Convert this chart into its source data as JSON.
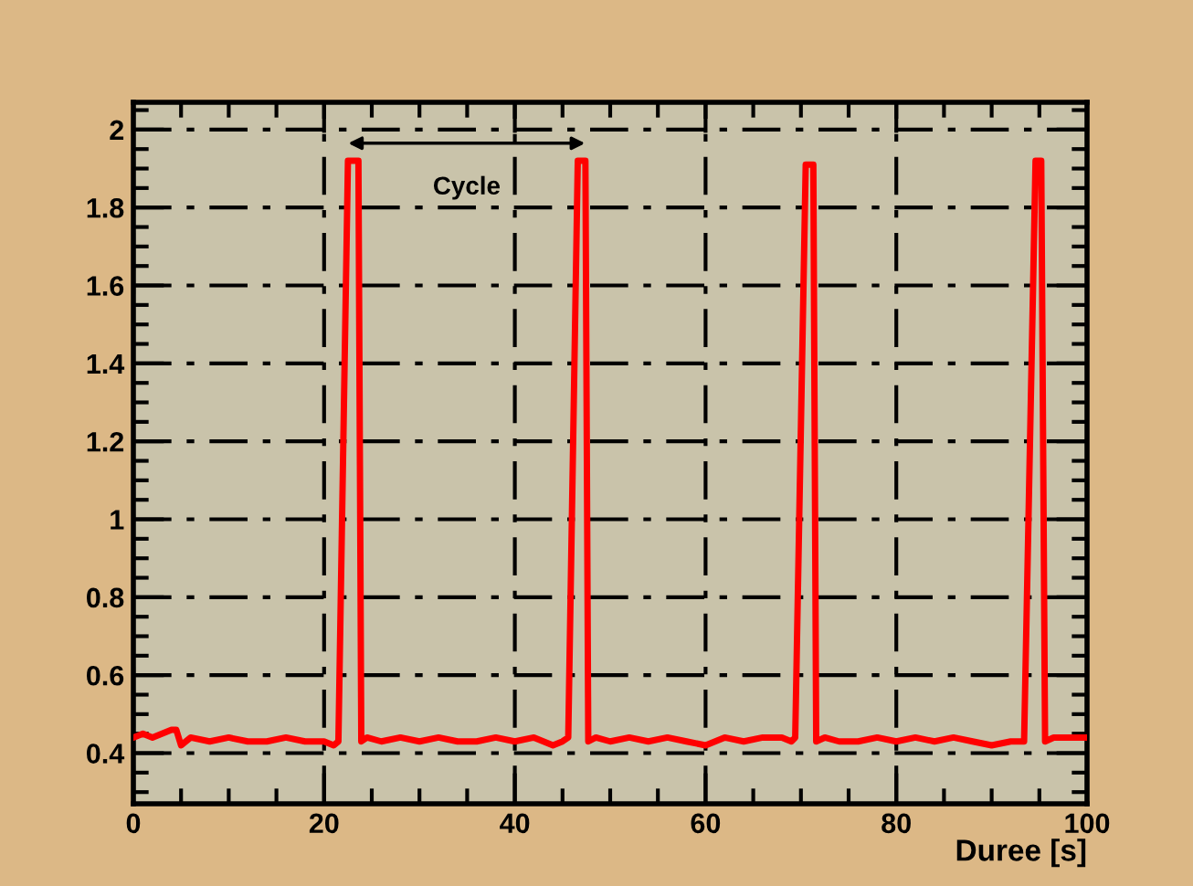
{
  "chart_data": {
    "type": "line",
    "xlabel": "Duree [s]",
    "x": [
      0,
      1,
      2,
      3,
      4,
      4.5,
      5,
      6,
      8,
      10,
      12,
      14,
      16,
      18,
      20,
      21,
      21.5,
      22.5,
      23.6,
      23.9,
      24.5,
      26,
      28,
      30,
      32,
      34,
      36,
      38,
      40,
      42,
      44,
      45,
      45.6,
      46.6,
      47.4,
      47.7,
      48.5,
      50,
      52,
      54,
      56,
      58,
      60,
      62,
      64,
      66,
      68,
      69,
      69.4,
      70.5,
      71.3,
      71.6,
      72.5,
      74,
      76,
      78,
      80,
      82,
      84,
      86,
      88,
      90,
      92,
      93,
      93.4,
      94.6,
      95.2,
      95.6,
      96.5,
      98,
      100
    ],
    "series": [
      {
        "color": "#ff0000",
        "values": [
          0.44,
          0.45,
          0.44,
          0.45,
          0.46,
          0.46,
          0.42,
          0.44,
          0.43,
          0.44,
          0.43,
          0.43,
          0.44,
          0.43,
          0.43,
          0.42,
          0.43,
          1.92,
          1.92,
          0.43,
          0.44,
          0.43,
          0.44,
          0.43,
          0.44,
          0.43,
          0.43,
          0.44,
          0.43,
          0.44,
          0.42,
          0.43,
          0.44,
          1.92,
          1.92,
          0.43,
          0.44,
          0.43,
          0.44,
          0.43,
          0.44,
          0.43,
          0.42,
          0.44,
          0.43,
          0.44,
          0.44,
          0.43,
          0.44,
          1.91,
          1.91,
          0.43,
          0.44,
          0.43,
          0.43,
          0.44,
          0.43,
          0.44,
          0.43,
          0.44,
          0.43,
          0.42,
          0.43,
          0.43,
          0.43,
          1.92,
          1.92,
          0.43,
          0.44,
          0.44,
          0.44
        ]
      }
    ],
    "xlim": [
      0,
      100
    ],
    "xticks": [
      0,
      20,
      40,
      60,
      80,
      100
    ],
    "ylim": [
      0.27,
      2.07
    ],
    "yticks": [
      0.4,
      0.6,
      0.8,
      1,
      1.2,
      1.4,
      1.6,
      1.8,
      2
    ],
    "grid": true,
    "line_style": "solid",
    "marker": "none",
    "annotations": [
      "Cycle"
    ]
  }
}
